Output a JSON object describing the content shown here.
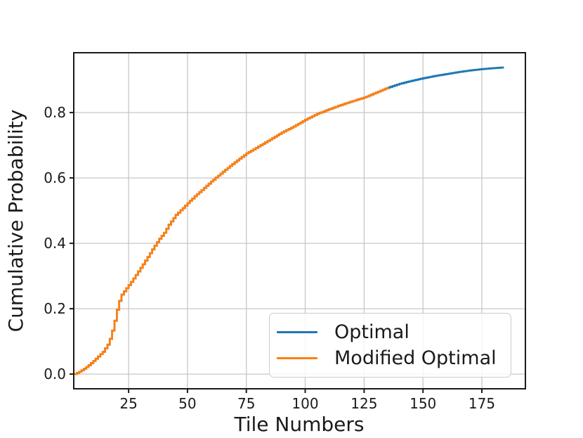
{
  "chart_data": {
    "type": "line",
    "subtype": "cumulative-step-cdf",
    "title": "",
    "xlabel": "Tile Numbers",
    "ylabel": "Cumulative Probability",
    "xlim": [
      1.7,
      193.5
    ],
    "ylim": [
      -0.045,
      0.983
    ],
    "x_ticks": [
      25,
      50,
      75,
      100,
      125,
      150,
      175
    ],
    "y_ticks": [
      0.0,
      0.2,
      0.4,
      0.6,
      0.8
    ],
    "grid": true,
    "legend_position": "lower right",
    "series": [
      {
        "name": "Optimal",
        "color": "#1f77b4",
        "x_range": [
          2,
          184
        ],
        "points": [
          [
            2,
            0.0
          ],
          [
            4,
            0.007
          ],
          [
            6,
            0.016
          ],
          [
            8,
            0.027
          ],
          [
            10,
            0.04
          ],
          [
            12,
            0.054
          ],
          [
            14,
            0.068
          ],
          [
            16,
            0.09
          ],
          [
            17,
            0.108
          ],
          [
            18,
            0.133
          ],
          [
            19,
            0.163
          ],
          [
            20,
            0.197
          ],
          [
            21,
            0.224
          ],
          [
            22,
            0.243
          ],
          [
            24,
            0.263
          ],
          [
            26,
            0.282
          ],
          [
            28,
            0.303
          ],
          [
            30,
            0.325
          ],
          [
            33,
            0.358
          ],
          [
            36,
            0.393
          ],
          [
            38,
            0.414
          ],
          [
            40,
            0.432
          ],
          [
            42,
            0.457
          ],
          [
            45,
            0.487
          ],
          [
            48,
            0.508
          ],
          [
            50,
            0.523
          ],
          [
            53,
            0.544
          ],
          [
            56,
            0.563
          ],
          [
            60,
            0.589
          ],
          [
            63,
            0.607
          ],
          [
            66,
            0.625
          ],
          [
            70,
            0.648
          ],
          [
            75,
            0.675
          ],
          [
            80,
            0.696
          ],
          [
            85,
            0.717
          ],
          [
            90,
            0.739
          ],
          [
            95,
            0.757
          ],
          [
            100,
            0.778
          ],
          [
            105,
            0.796
          ],
          [
            110,
            0.81
          ],
          [
            115,
            0.823
          ],
          [
            120,
            0.835
          ],
          [
            125,
            0.846
          ],
          [
            130,
            0.861
          ],
          [
            135,
            0.876
          ],
          [
            140,
            0.888
          ],
          [
            145,
            0.897
          ],
          [
            150,
            0.905
          ],
          [
            155,
            0.912
          ],
          [
            160,
            0.918
          ],
          [
            165,
            0.924
          ],
          [
            170,
            0.929
          ],
          [
            175,
            0.933
          ],
          [
            180,
            0.936
          ],
          [
            184,
            0.938
          ]
        ]
      },
      {
        "name": "Modified Optimal",
        "color": "#ff7f0e",
        "x_range": [
          2,
          135
        ],
        "points": [
          [
            2,
            0.0
          ],
          [
            4,
            0.007
          ],
          [
            6,
            0.016
          ],
          [
            8,
            0.027
          ],
          [
            10,
            0.04
          ],
          [
            12,
            0.054
          ],
          [
            14,
            0.068
          ],
          [
            16,
            0.09
          ],
          [
            17,
            0.108
          ],
          [
            18,
            0.133
          ],
          [
            19,
            0.163
          ],
          [
            20,
            0.197
          ],
          [
            21,
            0.224
          ],
          [
            22,
            0.243
          ],
          [
            24,
            0.263
          ],
          [
            26,
            0.282
          ],
          [
            28,
            0.303
          ],
          [
            30,
            0.325
          ],
          [
            33,
            0.358
          ],
          [
            36,
            0.393
          ],
          [
            38,
            0.414
          ],
          [
            40,
            0.432
          ],
          [
            42,
            0.457
          ],
          [
            45,
            0.487
          ],
          [
            48,
            0.508
          ],
          [
            50,
            0.523
          ],
          [
            53,
            0.544
          ],
          [
            56,
            0.563
          ],
          [
            60,
            0.589
          ],
          [
            63,
            0.607
          ],
          [
            66,
            0.625
          ],
          [
            70,
            0.648
          ],
          [
            75,
            0.675
          ],
          [
            80,
            0.696
          ],
          [
            85,
            0.717
          ],
          [
            90,
            0.739
          ],
          [
            95,
            0.757
          ],
          [
            100,
            0.778
          ],
          [
            105,
            0.796
          ],
          [
            110,
            0.81
          ],
          [
            115,
            0.823
          ],
          [
            120,
            0.835
          ],
          [
            125,
            0.846
          ],
          [
            130,
            0.861
          ],
          [
            135,
            0.876
          ]
        ]
      }
    ]
  },
  "style_colors": {
    "grid": "#c7c7c7",
    "spine": "#1a1a1a",
    "tick": "#1a1a1a",
    "background": "#ffffff"
  }
}
